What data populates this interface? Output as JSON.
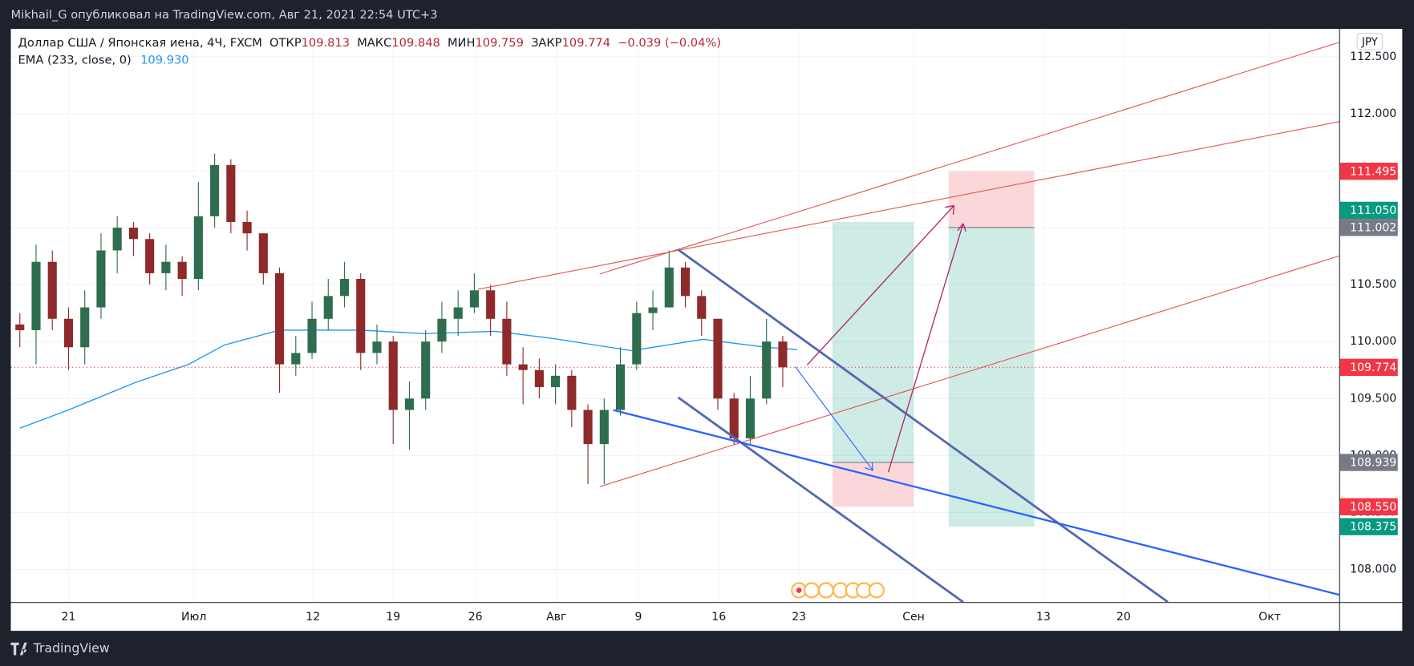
{
  "header": {
    "publisher": "Mikhail_G опубликовал на TradingView.com, Авг 21, 2021 22:54 UTC+3"
  },
  "legend": {
    "symbol": "Доллар США / Японская иена, 4Ч, FXCM",
    "open_label": "ОТКР",
    "open": 109.813,
    "high_label": "МАКС",
    "high": 109.848,
    "low_label": "МИН",
    "low": 109.759,
    "close_label": "ЗАКР",
    "close": 109.774,
    "change": "−0.039 (−0.04%)",
    "ema_label": "EMA (233, close, 0)",
    "ema": "109.930"
  },
  "currency": "JPY",
  "footer": {
    "brand": "TradingView"
  },
  "chart_data": {
    "type": "candlestick",
    "up_color": "#2e6e4e",
    "down_color": "#8e2a2a",
    "grid": true,
    "x": [
      -3,
      -2,
      -1,
      0,
      1,
      2,
      3,
      4,
      5,
      6,
      7,
      8,
      9,
      10,
      11,
      12,
      13,
      14,
      15,
      16,
      17,
      18,
      19,
      20,
      21,
      22,
      23,
      24,
      25,
      26,
      27,
      28,
      29,
      30,
      31,
      32,
      33,
      34,
      35,
      36,
      37,
      38,
      39,
      40,
      41,
      42,
      43,
      44
    ],
    "open": [
      110.15,
      110.1,
      110.7,
      110.2,
      109.95,
      110.3,
      110.8,
      111.0,
      110.9,
      110.6,
      110.7,
      110.55,
      111.1,
      111.55,
      111.05,
      110.95,
      110.6,
      109.8,
      109.9,
      110.2,
      110.4,
      110.55,
      109.9,
      110.0,
      109.4,
      109.5,
      110.0,
      110.2,
      110.3,
      110.45,
      110.2,
      109.8,
      109.75,
      109.6,
      109.7,
      109.4,
      109.1,
      109.4,
      109.8,
      110.25,
      110.3,
      110.65,
      110.4,
      110.2,
      109.5,
      109.15,
      109.5,
      110.0
    ],
    "high": [
      110.25,
      110.85,
      110.8,
      110.3,
      110.45,
      110.95,
      111.1,
      111.05,
      110.95,
      110.85,
      110.75,
      111.4,
      111.65,
      111.6,
      111.15,
      110.95,
      110.65,
      110.05,
      110.35,
      110.55,
      110.7,
      110.6,
      110.15,
      110.05,
      109.65,
      110.1,
      110.35,
      110.45,
      110.6,
      110.5,
      110.35,
      109.95,
      109.85,
      109.8,
      109.75,
      109.45,
      109.5,
      109.95,
      110.35,
      110.45,
      110.8,
      110.7,
      110.45,
      110.2,
      109.55,
      109.7,
      110.2,
      110.05
    ],
    "low": [
      109.95,
      109.8,
      110.1,
      109.75,
      109.8,
      110.2,
      110.6,
      110.75,
      110.5,
      110.45,
      110.4,
      110.45,
      111.0,
      110.95,
      110.8,
      110.5,
      109.55,
      109.7,
      109.85,
      110.1,
      110.3,
      109.75,
      109.8,
      109.1,
      109.05,
      109.4,
      109.9,
      110.05,
      110.25,
      110.05,
      109.7,
      109.45,
      109.5,
      109.45,
      109.25,
      108.75,
      108.75,
      109.35,
      109.75,
      110.1,
      110.3,
      110.3,
      110.05,
      109.4,
      109.1,
      109.1,
      109.45,
      109.6
    ],
    "close": [
      110.1,
      110.7,
      110.2,
      109.95,
      110.3,
      110.8,
      111.0,
      110.9,
      110.6,
      110.7,
      110.55,
      111.1,
      111.55,
      111.05,
      110.95,
      110.6,
      109.8,
      109.9,
      110.2,
      110.4,
      110.55,
      109.9,
      110.0,
      109.4,
      109.5,
      110.0,
      110.2,
      110.3,
      110.45,
      110.2,
      109.8,
      109.75,
      109.6,
      109.7,
      109.4,
      109.1,
      109.4,
      109.8,
      110.25,
      110.3,
      110.65,
      110.4,
      110.2,
      109.5,
      109.15,
      109.5,
      110.0,
      109.774
    ],
    "ema": {
      "color": "#2196f3",
      "x": [
        -3,
        0,
        4.1,
        7.4,
        9.6,
        13,
        18,
        21.9,
        26.3,
        29.7,
        34.7,
        39.1,
        43,
        44.9
      ],
      "values": [
        109.24,
        109.4,
        109.64,
        109.8,
        109.97,
        110.1,
        110.1,
        110.07,
        110.09,
        110.03,
        109.92,
        110.02,
        109.95,
        109.93
      ]
    },
    "last_price": 109.774,
    "xlim": [
      -3.556,
      78.278
    ],
    "xticks": [
      {
        "value": 0,
        "label": "21"
      },
      {
        "value": 7.72,
        "label": "Июл"
      },
      {
        "value": 15.06,
        "label": "12"
      },
      {
        "value": 20,
        "label": "19"
      },
      {
        "value": 25.06,
        "label": "26"
      },
      {
        "value": 30.06,
        "label": "Авг"
      },
      {
        "value": 35.11,
        "label": "9"
      },
      {
        "value": 40.06,
        "label": "16"
      },
      {
        "value": 45,
        "label": "23"
      },
      {
        "value": 52.06,
        "label": "Сен"
      },
      {
        "value": 60.06,
        "label": "13"
      },
      {
        "value": 65,
        "label": "20"
      },
      {
        "value": 74,
        "label": "Окт"
      }
    ],
    "ylim": [
      107.714,
      112.745
    ],
    "yticks": [
      {
        "value": 112.5,
        "label": "112.500"
      },
      {
        "value": 112,
        "label": "112.000"
      },
      {
        "value": 111.5,
        "label": "111.500"
      },
      {
        "value": 111,
        "label": "111.000"
      },
      {
        "value": 110.5,
        "label": "110.500"
      },
      {
        "value": 110,
        "label": "110.000"
      },
      {
        "value": 109.5,
        "label": "109.500"
      },
      {
        "value": 109,
        "label": "109.000"
      },
      {
        "value": 108.5,
        "label": "108.500"
      },
      {
        "value": 108,
        "label": "108.000"
      }
    ],
    "positions": [
      {
        "start": 47.06,
        "end": 52.06,
        "target": 111.05,
        "entry": 108.939,
        "stop": 108.55
      },
      {
        "start": 54.22,
        "end": 59.5,
        "target": 108.375,
        "entry": 111.002,
        "stop": 111.495
      }
    ],
    "price_tags": [
      {
        "value": 111.495,
        "label": "111.495",
        "color": "#f23645"
      },
      {
        "value": 111.05,
        "label": "111.050",
        "color": "#089981"
      },
      {
        "value": 111.002,
        "label": "111.002",
        "color": "#787b86"
      },
      {
        "value": 109.774,
        "label": "109.774",
        "color": "#f23645"
      },
      {
        "value": 108.939,
        "label": "108.939",
        "color": "#787b86"
      },
      {
        "value": 108.55,
        "label": "108.550",
        "color": "#f23645"
      },
      {
        "value": 108.375,
        "label": "108.375",
        "color": "#089981"
      }
    ]
  }
}
